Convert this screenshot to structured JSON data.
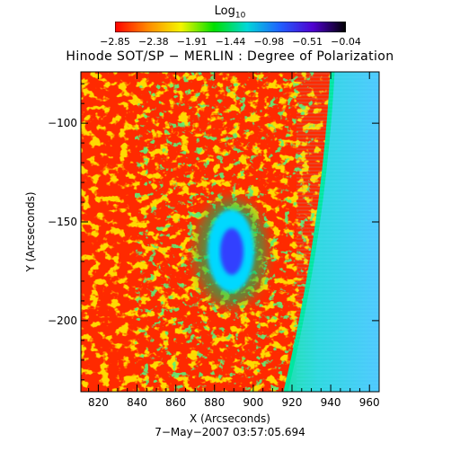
{
  "colorbar": {
    "label_main": "Log",
    "label_sub": "10",
    "ticks": [
      "−2.85",
      "−2.38",
      "−1.91",
      "−1.44",
      "−0.98",
      "−0.51",
      "−0.04"
    ],
    "gradient": [
      "#ff0000",
      "#ff8a00",
      "#f5f500",
      "#00e000",
      "#00d8d8",
      "#2060ff",
      "#5000d0",
      "#000000"
    ]
  },
  "title": "Hinode SOT/SP − MERLIN : Degree of Polarization",
  "x_axis": {
    "label": "X (Arcseconds)",
    "ticks": [
      "820",
      "840",
      "860",
      "880",
      "900",
      "920",
      "940",
      "960"
    ],
    "range": [
      811,
      965
    ]
  },
  "y_axis": {
    "label": "Y (Arcseconds)",
    "ticks": [
      "−100",
      "−150",
      "−200"
    ],
    "tick_values": [
      -100,
      -150,
      -200
    ],
    "range": [
      -236,
      -74
    ]
  },
  "date": "7−May−2007 03:57:05.694",
  "image": {
    "background_color": "#ff2a00",
    "limb_color": "#00e6a0",
    "offlimb_color": "#30d8e0",
    "spot_umbra_color": "#3040ff",
    "spot_penumbra_color": "#00d8ff"
  }
}
